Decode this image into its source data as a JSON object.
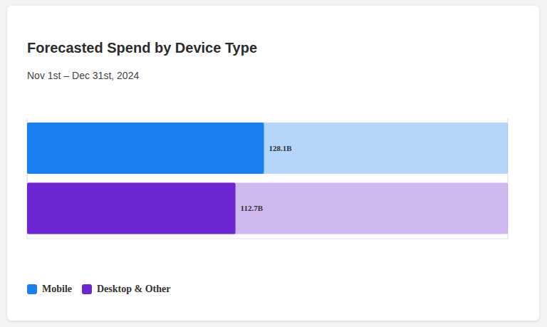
{
  "chart_data": {
    "type": "bar",
    "title": "Forecasted Spend by Device Type",
    "subtitle": "Nov 1st – Dec 31st, 2024",
    "orientation": "horizontal",
    "categories": [
      "Mobile",
      "Desktop & Other"
    ],
    "values": [
      128.1,
      112.7
    ],
    "value_labels": [
      "128.1B",
      "112.7B"
    ],
    "colors": [
      "#1a7ff0",
      "#6e25d4"
    ],
    "xlim": [
      0,
      260
    ],
    "xticks": [
      0,
      50,
      100,
      150,
      200,
      250
    ],
    "grid": true,
    "data_labels": true,
    "tick_labels": false,
    "legend": "bottom"
  }
}
